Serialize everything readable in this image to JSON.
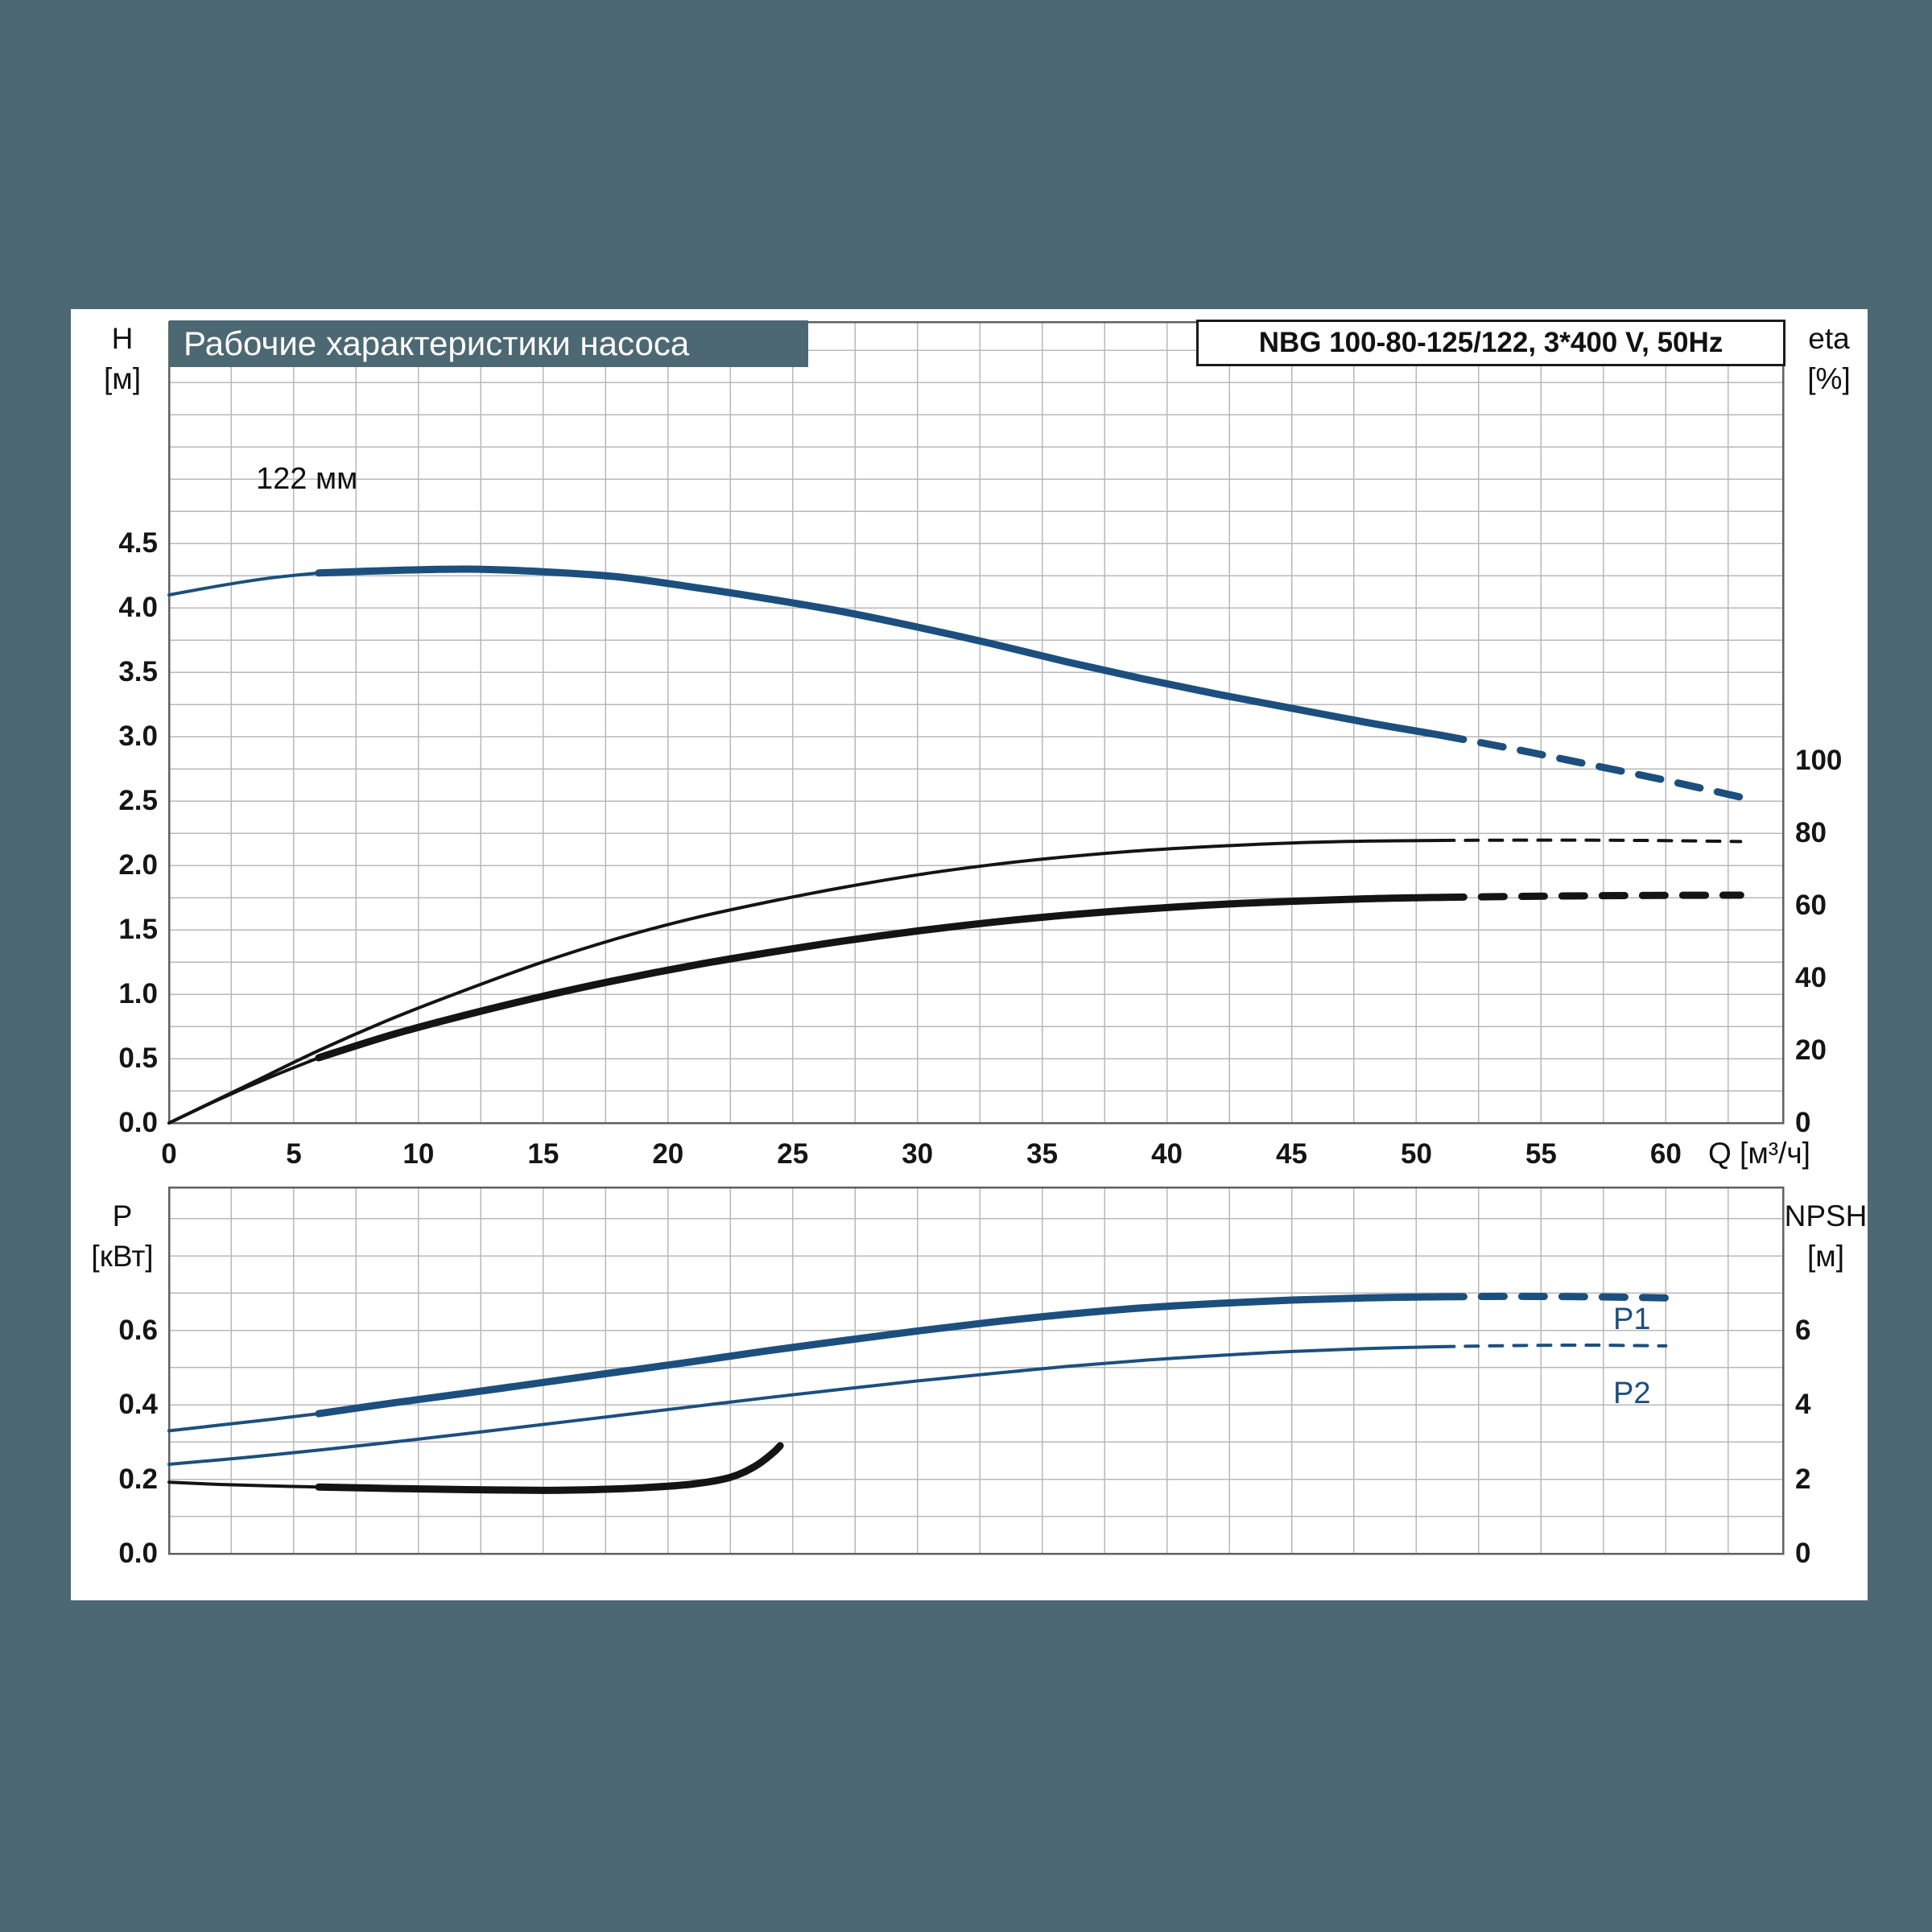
{
  "header": {
    "title": "Рабочие характеристики насоса",
    "pump_info": "NBG 100-80-125/122, 3*400 V, 50Hz"
  },
  "colors": {
    "background": "#4c6873",
    "panel": "#ffffff",
    "blue": "#1c4f7e",
    "black": "#141414",
    "grid": "#b8b8b8",
    "plot_border": "#606060",
    "title_text": "#ffffff"
  },
  "chart_data": [
    {
      "id": "head-efficiency",
      "type": "line",
      "title": "Рабочие характеристики насоса",
      "x_axis": {
        "label": "Q [м³/ч]",
        "min": 0,
        "max": 64.7,
        "minor_step": 2.5,
        "tick_values": [
          0,
          5,
          10,
          15,
          20,
          25,
          30,
          35,
          40,
          45,
          50,
          55,
          60
        ],
        "tick_labels": [
          "0",
          "5",
          "10",
          "15",
          "20",
          "25",
          "30",
          "35",
          "40",
          "45",
          "50",
          "55",
          "60"
        ]
      },
      "y_left": {
        "label": "H",
        "unit": "[м]",
        "min": 0,
        "max": 6.2,
        "minor_step": 0.25,
        "tick_values": [
          0,
          0.5,
          1,
          1.5,
          2,
          2.5,
          3,
          3.5,
          4,
          4.5
        ],
        "tick_labels": [
          "0.0",
          "0.5",
          "1.0",
          "1.5",
          "2.0",
          "2.5",
          "3.0",
          "3.5",
          "4.0",
          "4.5"
        ]
      },
      "y_right": {
        "label": "eta",
        "unit": "[%]",
        "min": 0,
        "max": 100,
        "tick_values": [
          0,
          20,
          40,
          60,
          80,
          100
        ],
        "tick_labels": [
          "0",
          "20",
          "40",
          "60",
          "80",
          "100"
        ]
      },
      "series": [
        {
          "name": "head-curve-122mm",
          "label": "122 мм",
          "color": "blue",
          "axis": "left",
          "segments": [
            {
              "weight": "thin",
              "dash": false,
              "points": [
                [
                  0,
                  4.1
                ],
                [
                  2,
                  4.17
                ],
                [
                  4,
                  4.23
                ],
                [
                  6,
                  4.27
                ]
              ]
            },
            {
              "weight": "thick",
              "dash": false,
              "points": [
                [
                  6,
                  4.27
                ],
                [
                  9,
                  4.29
                ],
                [
                  12,
                  4.3
                ],
                [
                  15,
                  4.28
                ],
                [
                  18,
                  4.24
                ],
                [
                  21,
                  4.16
                ],
                [
                  24,
                  4.07
                ],
                [
                  27,
                  3.97
                ],
                [
                  30,
                  3.85
                ],
                [
                  33,
                  3.72
                ],
                [
                  36,
                  3.58
                ],
                [
                  39,
                  3.45
                ],
                [
                  42,
                  3.33
                ],
                [
                  45,
                  3.22
                ],
                [
                  48,
                  3.11
                ],
                [
                  51,
                  3.01
                ]
              ]
            },
            {
              "weight": "thick",
              "dash": true,
              "points": [
                [
                  51,
                  3.01
                ],
                [
                  54,
                  2.9
                ],
                [
                  57,
                  2.78
                ],
                [
                  60,
                  2.66
                ],
                [
                  63,
                  2.53
                ]
              ]
            }
          ]
        },
        {
          "name": "efficiency-pump",
          "label": "",
          "color": "black",
          "axis": "right",
          "segments": [
            {
              "weight": "thin",
              "dash": false,
              "points": [
                [
                  0,
                  0
                ],
                [
                  3,
                  10
                ],
                [
                  6,
                  20
                ],
                [
                  9,
                  29
                ],
                [
                  12,
                  37
                ],
                [
                  15,
                  44.5
                ],
                [
                  18,
                  51
                ],
                [
                  21,
                  56.5
                ],
                [
                  24,
                  61
                ],
                [
                  27,
                  65
                ],
                [
                  30,
                  68.5
                ],
                [
                  33,
                  71.3
                ],
                [
                  36,
                  73.5
                ],
                [
                  39,
                  75.2
                ],
                [
                  42,
                  76.4
                ],
                [
                  45,
                  77.3
                ],
                [
                  48,
                  77.8
                ],
                [
                  51,
                  78.0
                ]
              ]
            },
            {
              "weight": "thin",
              "dash": true,
              "points": [
                [
                  51,
                  78.0
                ],
                [
                  55,
                  78.1
                ],
                [
                  59,
                  78.0
                ],
                [
                  63,
                  77.7
                ]
              ]
            }
          ]
        },
        {
          "name": "efficiency-pump-motor",
          "label": "",
          "color": "black",
          "axis": "right",
          "segments": [
            {
              "weight": "thin",
              "dash": false,
              "points": [
                [
                  0,
                  0
                ],
                [
                  2,
                  6.5
                ],
                [
                  4,
                  12.5
                ],
                [
                  6,
                  18
                ]
              ]
            },
            {
              "weight": "thick",
              "dash": false,
              "points": [
                [
                  6,
                  18
                ],
                [
                  9,
                  24.5
                ],
                [
                  12,
                  30
                ],
                [
                  15,
                  35
                ],
                [
                  18,
                  39.5
                ],
                [
                  21,
                  43.5
                ],
                [
                  24,
                  47
                ],
                [
                  27,
                  50.2
                ],
                [
                  30,
                  53
                ],
                [
                  33,
                  55.4
                ],
                [
                  36,
                  57.4
                ],
                [
                  39,
                  59
                ],
                [
                  42,
                  60.3
                ],
                [
                  45,
                  61.2
                ],
                [
                  48,
                  61.9
                ],
                [
                  51,
                  62.3
                ]
              ]
            },
            {
              "weight": "thick",
              "dash": true,
              "points": [
                [
                  51,
                  62.3
                ],
                [
                  55,
                  62.6
                ],
                [
                  59,
                  62.8
                ],
                [
                  63,
                  62.9
                ]
              ]
            }
          ]
        }
      ]
    },
    {
      "id": "power-npsh",
      "type": "line",
      "title": "",
      "x_axis": {
        "label": "",
        "min": 0,
        "max": 64.7,
        "minor_step": 2.5,
        "tick_values": [],
        "tick_labels": []
      },
      "y_left": {
        "label": "P",
        "unit": "[кВт]",
        "min": 0,
        "max": 0.98,
        "minor_step": 0.1,
        "tick_values": [
          0,
          0.2,
          0.4,
          0.6
        ],
        "tick_labels": [
          "0.0",
          "0.2",
          "0.4",
          "0.6"
        ]
      },
      "y_right": {
        "label": "NPSH",
        "unit": "[м]",
        "min": 0,
        "max": 9.8,
        "tick_values": [
          0,
          2,
          4,
          6
        ],
        "tick_labels": [
          "0",
          "2",
          "4",
          "6"
        ]
      },
      "series": [
        {
          "name": "power-p1",
          "label": "P1",
          "color": "blue",
          "axis": "left",
          "segments": [
            {
              "weight": "thin",
              "dash": false,
              "points": [
                [
                  0,
                  0.33
                ],
                [
                  2,
                  0.345
                ],
                [
                  4,
                  0.36
                ],
                [
                  6,
                  0.376
                ]
              ]
            },
            {
              "weight": "thick",
              "dash": false,
              "points": [
                [
                  6,
                  0.376
                ],
                [
                  9,
                  0.405
                ],
                [
                  12,
                  0.432
                ],
                [
                  15,
                  0.46
                ],
                [
                  18,
                  0.488
                ],
                [
                  21,
                  0.516
                ],
                [
                  24,
                  0.545
                ],
                [
                  27,
                  0.572
                ],
                [
                  30,
                  0.598
                ],
                [
                  33,
                  0.622
                ],
                [
                  36,
                  0.643
                ],
                [
                  39,
                  0.66
                ],
                [
                  42,
                  0.672
                ],
                [
                  45,
                  0.681
                ],
                [
                  48,
                  0.687
                ],
                [
                  51,
                  0.69
                ]
              ]
            },
            {
              "weight": "thick",
              "dash": true,
              "points": [
                [
                  51,
                  0.69
                ],
                [
                  54,
                  0.691
                ],
                [
                  57,
                  0.69
                ],
                [
                  60,
                  0.687
                ]
              ]
            }
          ]
        },
        {
          "name": "power-p2",
          "label": "P2",
          "color": "blue",
          "axis": "left",
          "segments": [
            {
              "weight": "thin",
              "dash": false,
              "points": [
                [
                  0,
                  0.24
                ],
                [
                  3,
                  0.258
                ],
                [
                  6,
                  0.278
                ],
                [
                  9,
                  0.3
                ],
                [
                  12,
                  0.323
                ],
                [
                  15,
                  0.347
                ],
                [
                  18,
                  0.371
                ],
                [
                  21,
                  0.395
                ],
                [
                  24,
                  0.419
                ],
                [
                  27,
                  0.442
                ],
                [
                  30,
                  0.464
                ],
                [
                  33,
                  0.484
                ],
                [
                  36,
                  0.503
                ],
                [
                  39,
                  0.519
                ],
                [
                  42,
                  0.532
                ],
                [
                  45,
                  0.543
                ],
                [
                  48,
                  0.551
                ],
                [
                  51,
                  0.556
                ]
              ]
            },
            {
              "weight": "thin",
              "dash": true,
              "points": [
                [
                  51,
                  0.556
                ],
                [
                  54,
                  0.559
                ],
                [
                  57,
                  0.56
                ],
                [
                  60,
                  0.558
                ]
              ]
            }
          ]
        },
        {
          "name": "npsh-curve",
          "label": "",
          "color": "black",
          "axis": "right",
          "segments": [
            {
              "weight": "thin",
              "dash": false,
              "points": [
                [
                  0,
                  1.92
                ],
                [
                  2,
                  1.86
                ],
                [
                  4,
                  1.82
                ],
                [
                  6,
                  1.79
                ]
              ]
            },
            {
              "weight": "thick",
              "dash": false,
              "points": [
                [
                  6,
                  1.79
                ],
                [
                  9,
                  1.75
                ],
                [
                  12,
                  1.72
                ],
                [
                  15,
                  1.7
                ],
                [
                  17,
                  1.72
                ],
                [
                  19,
                  1.77
                ],
                [
                  21,
                  1.87
                ],
                [
                  22.5,
                  2.05
                ],
                [
                  23.5,
                  2.35
                ],
                [
                  24.2,
                  2.7
                ],
                [
                  24.5,
                  2.9
                ]
              ]
            }
          ]
        }
      ]
    }
  ]
}
